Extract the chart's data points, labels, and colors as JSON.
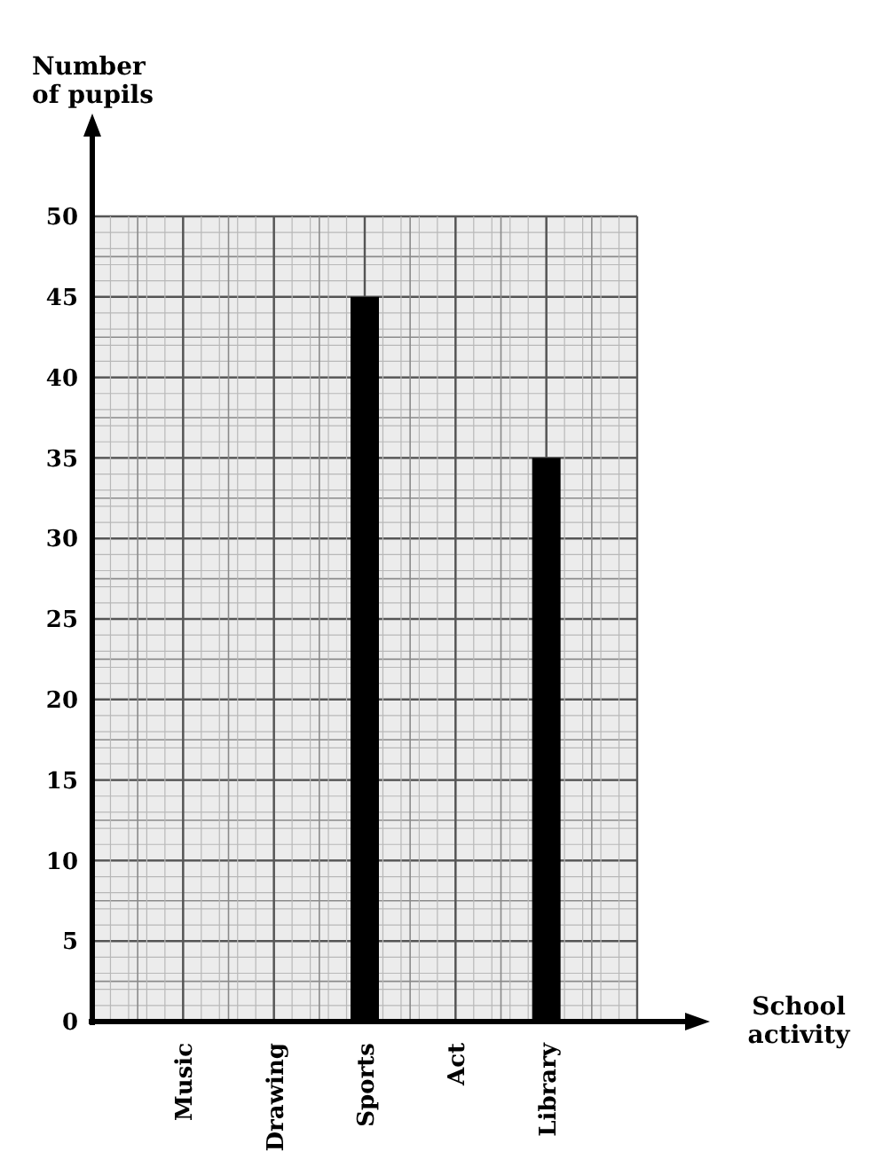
{
  "chart_data": {
    "type": "bar",
    "xlabel": "School activity",
    "ylabel": "Number of pupils",
    "categories": [
      "Music",
      "Drawing",
      "Sports",
      "Act",
      "Library"
    ],
    "values": [
      null,
      null,
      45,
      null,
      35
    ],
    "color": "#000000",
    "ylim": [
      0,
      50
    ],
    "yticks": [
      0,
      5,
      10,
      15,
      20,
      25,
      30,
      35,
      40,
      45,
      50
    ],
    "grid": true
  }
}
